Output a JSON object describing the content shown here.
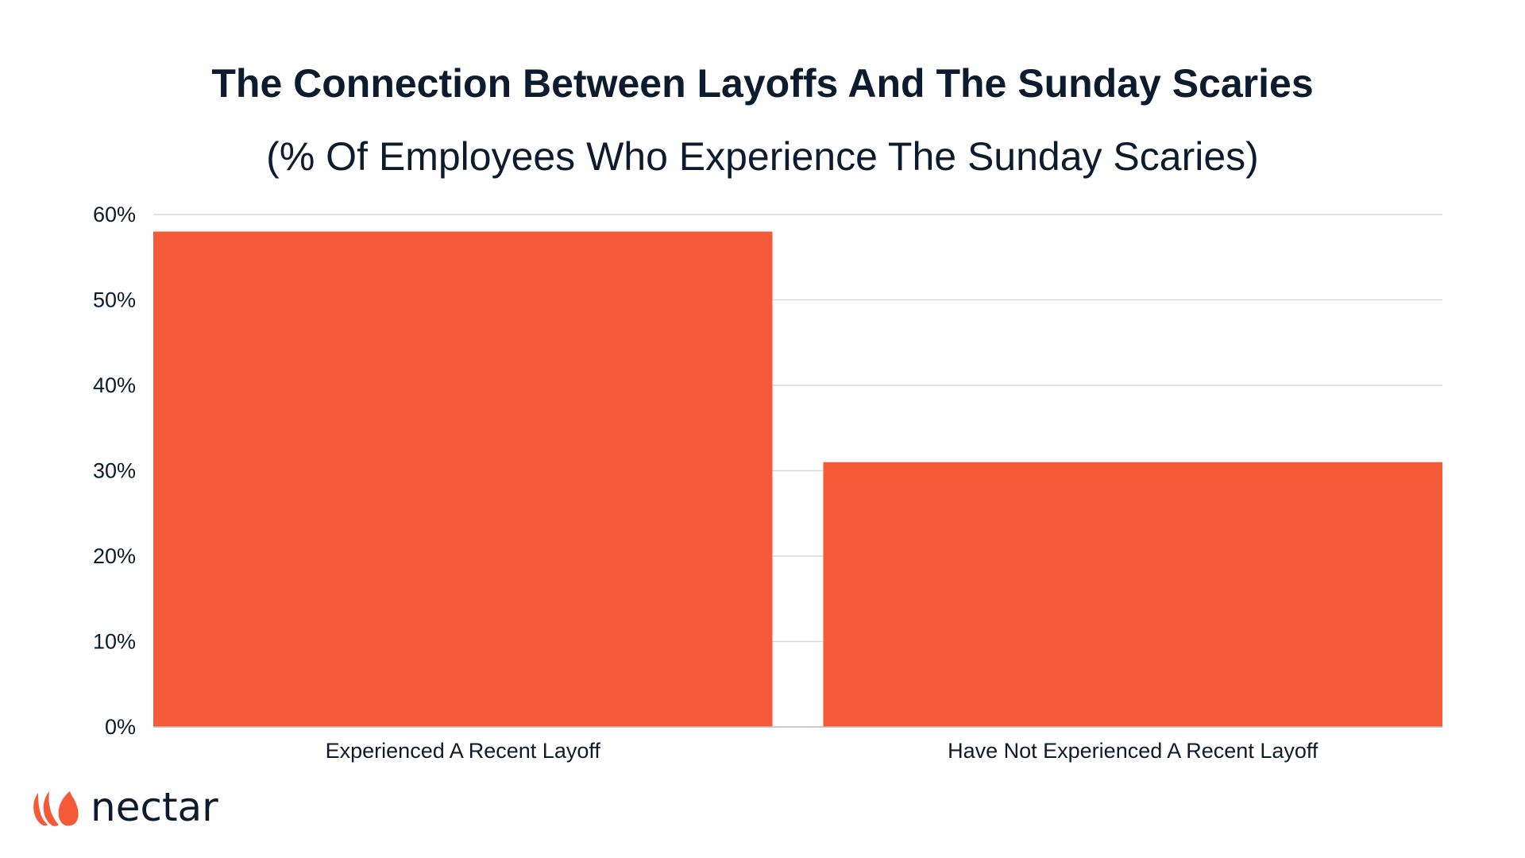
{
  "colors": {
    "bar": "#f45a38",
    "text": "#0d1b2e",
    "grid": "#d9d9d9",
    "logo": "#f45a38"
  },
  "brand": {
    "name": "nectar",
    "icon": "nectar-flame-icon"
  },
  "chart_data": {
    "type": "bar",
    "title": "The Connection Between Layoffs And The Sunday Scaries",
    "subtitle": "(% Of Employees Who Experience The Sunday Scaries)",
    "categories": [
      "Experienced A Recent Layoff",
      "Have Not Experienced A Recent Layoff"
    ],
    "values": [
      58,
      31
    ],
    "unit": "%",
    "ylim": [
      0,
      60
    ],
    "yticks": [
      0,
      10,
      20,
      30,
      40,
      50,
      60
    ],
    "ytick_labels": [
      "0%",
      "10%",
      "20%",
      "30%",
      "40%",
      "50%",
      "60%"
    ],
    "grid": true,
    "legend": "none",
    "xlabel": "",
    "ylabel": ""
  }
}
